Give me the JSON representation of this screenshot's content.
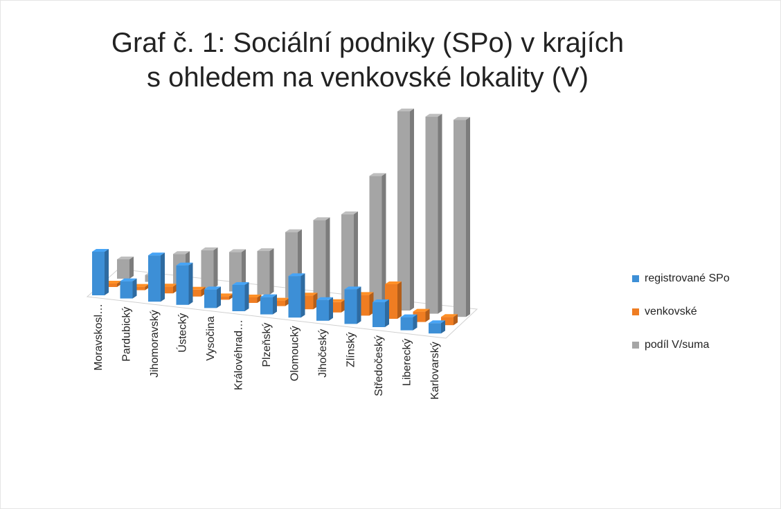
{
  "chart_data": {
    "type": "bar3d",
    "title": "Graf č. 1: Sociální podniky (SPo) v krajích s ohledem na venkovské lokality (V)",
    "categories": [
      "Moravskosl…",
      "Pardubický",
      "Jihomoravský",
      "Ústecký",
      "Vysočina",
      "Královéhrad…",
      "Plzeňský",
      "Olomoucký",
      "Jihočeský",
      "Zlínský",
      "Středočeský",
      "Liberecký",
      "Karlovarský"
    ],
    "series": [
      {
        "name": "registrované SPo",
        "color": "#3d8fd6",
        "values": [
          63,
          25,
          67,
          57,
          27,
          38,
          25,
          60,
          30,
          50,
          36,
          19,
          15
        ]
      },
      {
        "name": "venkovské",
        "color": "#ef7d22",
        "values": [
          5,
          5,
          10,
          10,
          5,
          8,
          8,
          20,
          15,
          30,
          50,
          15,
          12
        ]
      },
      {
        "name": "podíl V/suma",
        "color": "#a5a5a5",
        "values": [
          28,
          10,
          45,
          55,
          57,
          63,
          95,
          117,
          130,
          190,
          288,
          285,
          285
        ]
      }
    ],
    "legend": "right"
  }
}
